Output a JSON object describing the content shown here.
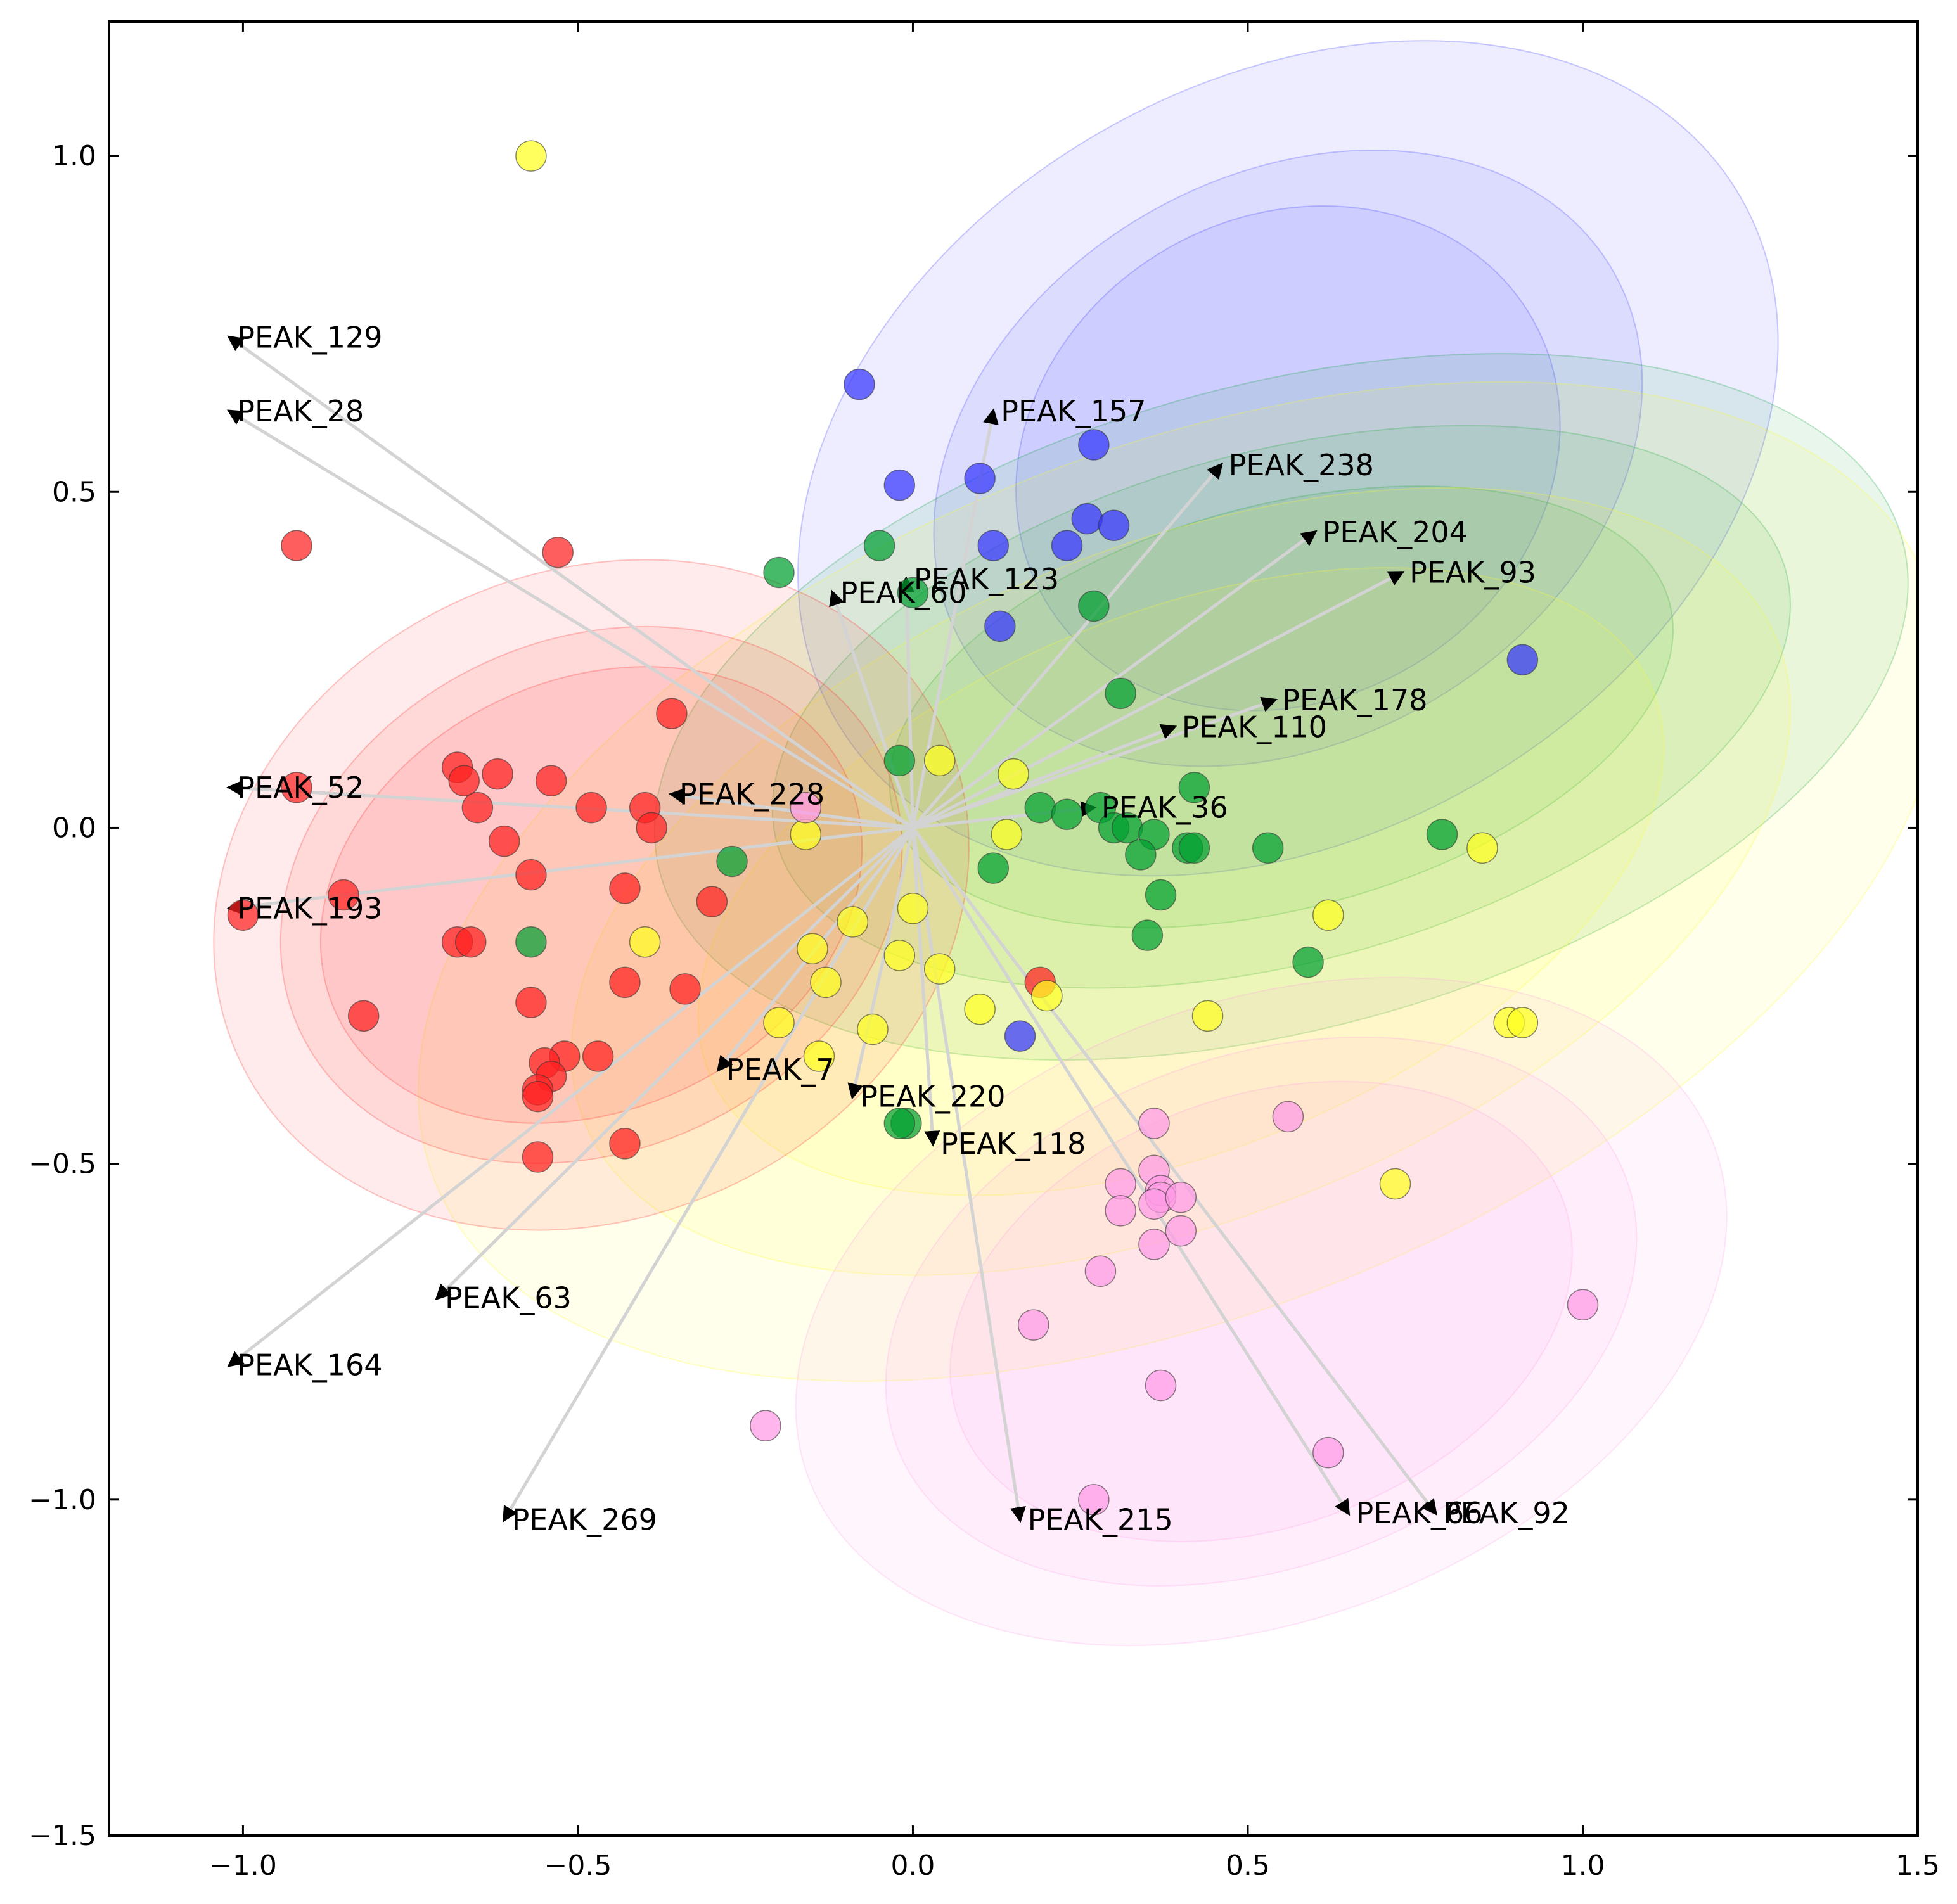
{
  "chart_data": {
    "type": "scatter",
    "title": "",
    "xlabel": "",
    "ylabel": "",
    "xlim": [
      -1.2,
      1.5
    ],
    "ylim": [
      -1.5,
      1.2
    ],
    "xticks": [
      -1.0,
      -0.5,
      0.0,
      0.5,
      1.0,
      1.5
    ],
    "yticks": [
      -1.5,
      -1.0,
      -0.5,
      0.0,
      0.5,
      1.0
    ],
    "xtick_labels": [
      "−1.0",
      "−0.5",
      "0.0",
      "0.5",
      "1.0",
      "1.5"
    ],
    "ytick_labels": [
      "−1.5",
      "−1.0",
      "−0.5",
      "0.0",
      "0.5",
      "1.0"
    ],
    "grid": false,
    "colors": {
      "red": "#ff2020",
      "orange": "#ff4a10",
      "yellow": "#ffff20",
      "green": "#00a030",
      "blue": "#3535ff",
      "pink": "#ff9ae6"
    },
    "ellipses": [
      {
        "group": "blue",
        "cx": 0.56,
        "cy": 0.55,
        "rx": [
          0.78,
          0.56,
          0.42
        ],
        "ry": [
          0.56,
          0.42,
          0.36
        ],
        "angle_deg": -30
      },
      {
        "group": "green",
        "cx": 0.55,
        "cy": 0.18,
        "rx": [
          0.96,
          0.78,
          0.6
        ],
        "ry": [
          0.48,
          0.38,
          0.3
        ],
        "angle_deg": -15
      },
      {
        "group": "yellow",
        "cx": 0.4,
        "cy": -0.08,
        "rx": [
          1.2,
          0.96,
          0.76
        ],
        "ry": [
          0.64,
          0.5,
          0.4
        ],
        "angle_deg": -22
      },
      {
        "group": "red",
        "cx": -0.48,
        "cy": -0.1,
        "rx": [
          0.58,
          0.48,
          0.42
        ],
        "ry": [
          0.48,
          0.38,
          0.32
        ],
        "angle_deg": -25
      },
      {
        "group": "pink",
        "cx": 0.52,
        "cy": -0.72,
        "rx": [
          0.72,
          0.58,
          0.48
        ],
        "ry": [
          0.46,
          0.38,
          0.32
        ],
        "angle_deg": -20
      }
    ],
    "vectors": [
      {
        "name": "PEAK_129",
        "x": -1.02,
        "y": 0.73
      },
      {
        "name": "PEAK_28",
        "x": -1.02,
        "y": 0.62
      },
      {
        "name": "PEAK_157",
        "x": 0.12,
        "y": 0.62
      },
      {
        "name": "PEAK_238",
        "x": 0.46,
        "y": 0.54
      },
      {
        "name": "PEAK_204",
        "x": 0.6,
        "y": 0.44
      },
      {
        "name": "PEAK_93",
        "x": 0.73,
        "y": 0.38
      },
      {
        "name": "PEAK_123",
        "x": -0.01,
        "y": 0.37
      },
      {
        "name": "PEAK_60",
        "x": -0.12,
        "y": 0.35
      },
      {
        "name": "PEAK_178",
        "x": 0.54,
        "y": 0.19
      },
      {
        "name": "PEAK_110",
        "x": 0.39,
        "y": 0.15
      },
      {
        "name": "PEAK_228",
        "x": -0.36,
        "y": 0.05
      },
      {
        "name": "PEAK_36",
        "x": 0.27,
        "y": 0.03
      },
      {
        "name": "PEAK_52",
        "x": -1.02,
        "y": 0.06
      },
      {
        "name": "PEAK_193",
        "x": -1.02,
        "y": -0.12
      },
      {
        "name": "PEAK_7",
        "x": -0.29,
        "y": -0.36
      },
      {
        "name": "PEAK_220",
        "x": -0.09,
        "y": -0.4
      },
      {
        "name": "PEAK_118",
        "x": 0.03,
        "y": -0.47
      },
      {
        "name": "PEAK_63",
        "x": -0.71,
        "y": -0.7
      },
      {
        "name": "PEAK_164",
        "x": -1.02,
        "y": -0.8
      },
      {
        "name": "PEAK_269",
        "x": -0.61,
        "y": -1.03
      },
      {
        "name": "PEAK_215",
        "x": 0.16,
        "y": -1.03
      },
      {
        "name": "PEAK_66",
        "x": 0.65,
        "y": -1.02
      },
      {
        "name": "PEAK_92",
        "x": 0.78,
        "y": -1.02
      }
    ],
    "series": [
      {
        "name": "red",
        "points": [
          [
            -0.92,
            0.42
          ],
          [
            -0.53,
            0.41
          ],
          [
            -0.36,
            0.17
          ],
          [
            -0.68,
            0.09
          ],
          [
            -0.67,
            0.07
          ],
          [
            -0.62,
            0.08
          ],
          [
            -0.54,
            0.07
          ],
          [
            -0.92,
            0.06
          ],
          [
            -0.65,
            0.03
          ],
          [
            -0.48,
            0.03
          ],
          [
            -0.4,
            0.03
          ],
          [
            -0.39,
            0.0
          ],
          [
            -0.61,
            -0.02
          ],
          [
            -0.57,
            -0.07
          ],
          [
            -0.43,
            -0.09
          ],
          [
            -0.3,
            -0.11
          ],
          [
            -0.85,
            -0.1
          ],
          [
            -1.0,
            -0.13
          ],
          [
            -0.68,
            -0.17
          ],
          [
            -0.66,
            -0.17
          ],
          [
            -0.43,
            -0.23
          ],
          [
            -0.34,
            -0.24
          ],
          [
            -0.57,
            -0.26
          ],
          [
            -0.82,
            -0.28
          ],
          [
            -0.52,
            -0.34
          ],
          [
            -0.47,
            -0.34
          ],
          [
            -0.55,
            -0.35
          ],
          [
            -0.54,
            -0.37
          ],
          [
            -0.56,
            -0.39
          ],
          [
            -0.56,
            -0.4
          ],
          [
            -0.43,
            -0.47
          ],
          [
            -0.56,
            -0.49
          ],
          [
            0.19,
            -0.23
          ]
        ]
      },
      {
        "name": "green",
        "points": [
          [
            -0.05,
            0.42
          ],
          [
            -0.2,
            0.38
          ],
          [
            0.0,
            0.35
          ],
          [
            0.27,
            0.33
          ],
          [
            0.31,
            0.2
          ],
          [
            -0.02,
            0.1
          ],
          [
            0.42,
            0.06
          ],
          [
            0.19,
            0.03
          ],
          [
            0.23,
            0.02
          ],
          [
            0.28,
            0.03
          ],
          [
            0.3,
            0.0
          ],
          [
            0.32,
            0.0
          ],
          [
            0.36,
            -0.01
          ],
          [
            0.41,
            -0.03
          ],
          [
            0.42,
            -0.03
          ],
          [
            0.53,
            -0.03
          ],
          [
            0.79,
            -0.01
          ],
          [
            0.34,
            -0.04
          ],
          [
            0.12,
            -0.06
          ],
          [
            -0.27,
            -0.05
          ],
          [
            0.37,
            -0.1
          ],
          [
            0.35,
            -0.16
          ],
          [
            -0.57,
            -0.17
          ],
          [
            0.59,
            -0.2
          ],
          [
            -0.01,
            -0.44
          ],
          [
            -0.02,
            -0.44
          ]
        ]
      },
      {
        "name": "yellow",
        "points": [
          [
            -0.57,
            1.0
          ],
          [
            0.04,
            0.1
          ],
          [
            0.15,
            0.08
          ],
          [
            -0.16,
            -0.01
          ],
          [
            0.14,
            -0.01
          ],
          [
            0.0,
            -0.12
          ],
          [
            -0.09,
            -0.14
          ],
          [
            -0.4,
            -0.17
          ],
          [
            -0.15,
            -0.18
          ],
          [
            -0.02,
            -0.19
          ],
          [
            0.04,
            -0.21
          ],
          [
            -0.13,
            -0.23
          ],
          [
            0.1,
            -0.27
          ],
          [
            0.2,
            -0.25
          ],
          [
            0.44,
            -0.28
          ],
          [
            -0.2,
            -0.29
          ],
          [
            -0.06,
            -0.3
          ],
          [
            -0.14,
            -0.34
          ],
          [
            0.85,
            -0.03
          ],
          [
            0.62,
            -0.13
          ],
          [
            0.89,
            -0.29
          ],
          [
            0.91,
            -0.29
          ],
          [
            0.72,
            -0.53
          ]
        ]
      },
      {
        "name": "blue",
        "points": [
          [
            -0.08,
            0.66
          ],
          [
            0.27,
            0.57
          ],
          [
            -0.02,
            0.51
          ],
          [
            0.1,
            0.52
          ],
          [
            0.26,
            0.46
          ],
          [
            0.3,
            0.45
          ],
          [
            0.12,
            0.42
          ],
          [
            0.23,
            0.42
          ],
          [
            0.13,
            0.3
          ],
          [
            0.91,
            0.25
          ],
          [
            0.16,
            -0.31
          ]
        ]
      },
      {
        "name": "pink",
        "points": [
          [
            -0.16,
            0.03
          ],
          [
            0.36,
            -0.44
          ],
          [
            0.56,
            -0.43
          ],
          [
            0.31,
            -0.53
          ],
          [
            0.36,
            -0.51
          ],
          [
            0.37,
            -0.54
          ],
          [
            0.37,
            -0.55
          ],
          [
            0.36,
            -0.56
          ],
          [
            0.4,
            -0.55
          ],
          [
            0.31,
            -0.57
          ],
          [
            0.36,
            -0.62
          ],
          [
            0.4,
            -0.6
          ],
          [
            0.28,
            -0.66
          ],
          [
            0.18,
            -0.74
          ],
          [
            1.0,
            -0.71
          ],
          [
            0.37,
            -0.83
          ],
          [
            -0.22,
            -0.89
          ],
          [
            0.62,
            -0.93
          ],
          [
            0.27,
            -1.0
          ]
        ]
      }
    ]
  }
}
